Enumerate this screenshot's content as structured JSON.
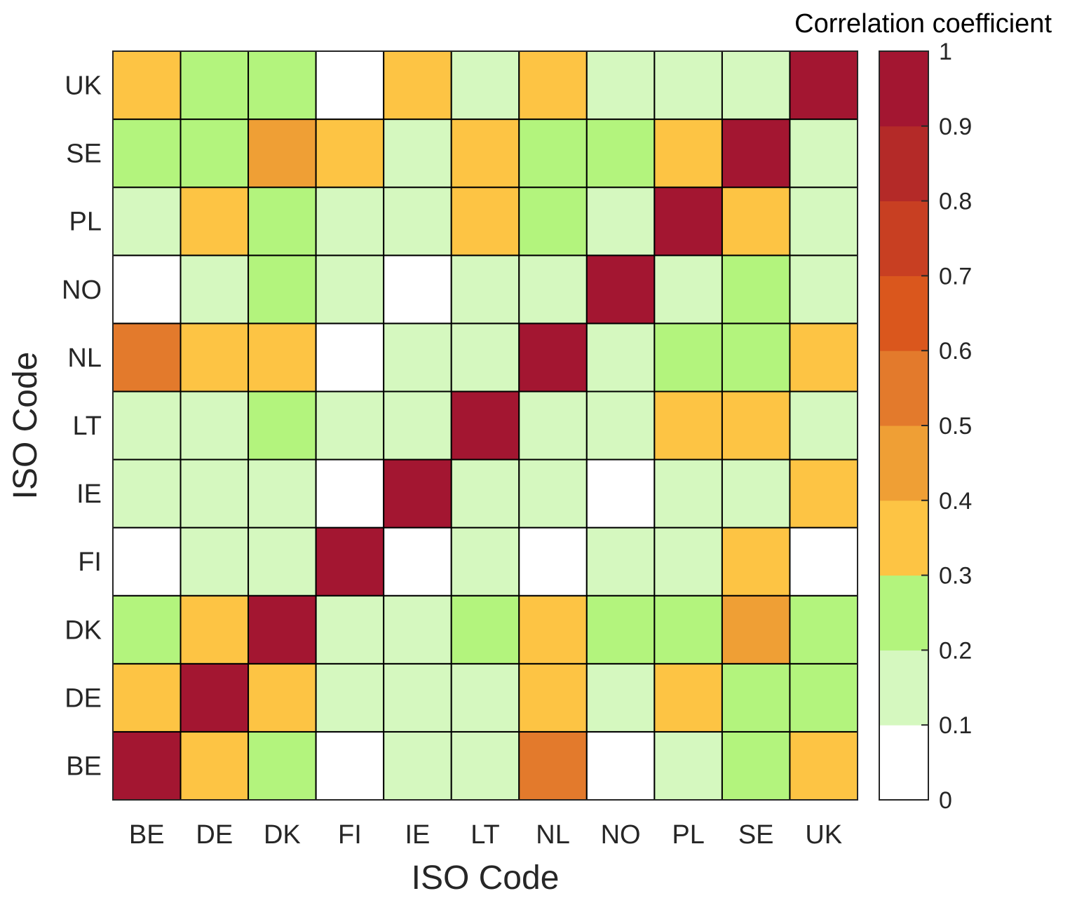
{
  "chart_data": {
    "type": "heatmap",
    "xlabel": "ISO Code",
    "ylabel": "ISO Code",
    "x_categories": [
      "BE",
      "DE",
      "DK",
      "FI",
      "IE",
      "LT",
      "NL",
      "NO",
      "PL",
      "SE",
      "UK"
    ],
    "y_categories": [
      "BE",
      "DE",
      "DK",
      "FI",
      "IE",
      "LT",
      "NL",
      "NO",
      "PL",
      "SE",
      "UK"
    ],
    "values_bottom_to_top": [
      [
        1.0,
        0.35,
        0.25,
        0.05,
        0.15,
        0.15,
        0.55,
        0.05,
        0.15,
        0.25,
        0.35
      ],
      [
        0.35,
        1.0,
        0.35,
        0.15,
        0.15,
        0.15,
        0.35,
        0.15,
        0.35,
        0.25,
        0.25
      ],
      [
        0.25,
        0.35,
        1.0,
        0.15,
        0.15,
        0.25,
        0.35,
        0.25,
        0.25,
        0.45,
        0.25
      ],
      [
        0.05,
        0.15,
        0.15,
        1.0,
        0.05,
        0.15,
        0.05,
        0.15,
        0.15,
        0.35,
        0.05
      ],
      [
        0.15,
        0.15,
        0.15,
        0.05,
        1.0,
        0.15,
        0.15,
        0.05,
        0.15,
        0.15,
        0.35
      ],
      [
        0.15,
        0.15,
        0.25,
        0.15,
        0.15,
        1.0,
        0.15,
        0.15,
        0.35,
        0.35,
        0.15
      ],
      [
        0.55,
        0.35,
        0.35,
        0.05,
        0.15,
        0.15,
        1.0,
        0.15,
        0.25,
        0.25,
        0.35
      ],
      [
        0.05,
        0.15,
        0.25,
        0.15,
        0.05,
        0.15,
        0.15,
        1.0,
        0.15,
        0.25,
        0.15
      ],
      [
        0.15,
        0.35,
        0.25,
        0.15,
        0.15,
        0.35,
        0.25,
        0.15,
        1.0,
        0.35,
        0.15
      ],
      [
        0.25,
        0.25,
        0.45,
        0.35,
        0.15,
        0.35,
        0.25,
        0.25,
        0.35,
        1.0,
        0.15
      ],
      [
        0.35,
        0.25,
        0.25,
        0.05,
        0.35,
        0.15,
        0.35,
        0.15,
        0.15,
        0.15,
        1.0
      ]
    ],
    "colorbar": {
      "title": "Correlation coefficient",
      "range": [
        0,
        1
      ],
      "ticks": [
        "0",
        "0.1",
        "0.2",
        "0.3",
        "0.4",
        "0.5",
        "0.6",
        "0.7",
        "0.8",
        "0.9",
        "1"
      ],
      "colors": [
        "#ffffff",
        "#d5f8bf",
        "#b3f47d",
        "#fdc444",
        "#ef9f35",
        "#e37a2c",
        "#da571d",
        "#c83f22",
        "#b42a28",
        "#a31631"
      ]
    }
  }
}
